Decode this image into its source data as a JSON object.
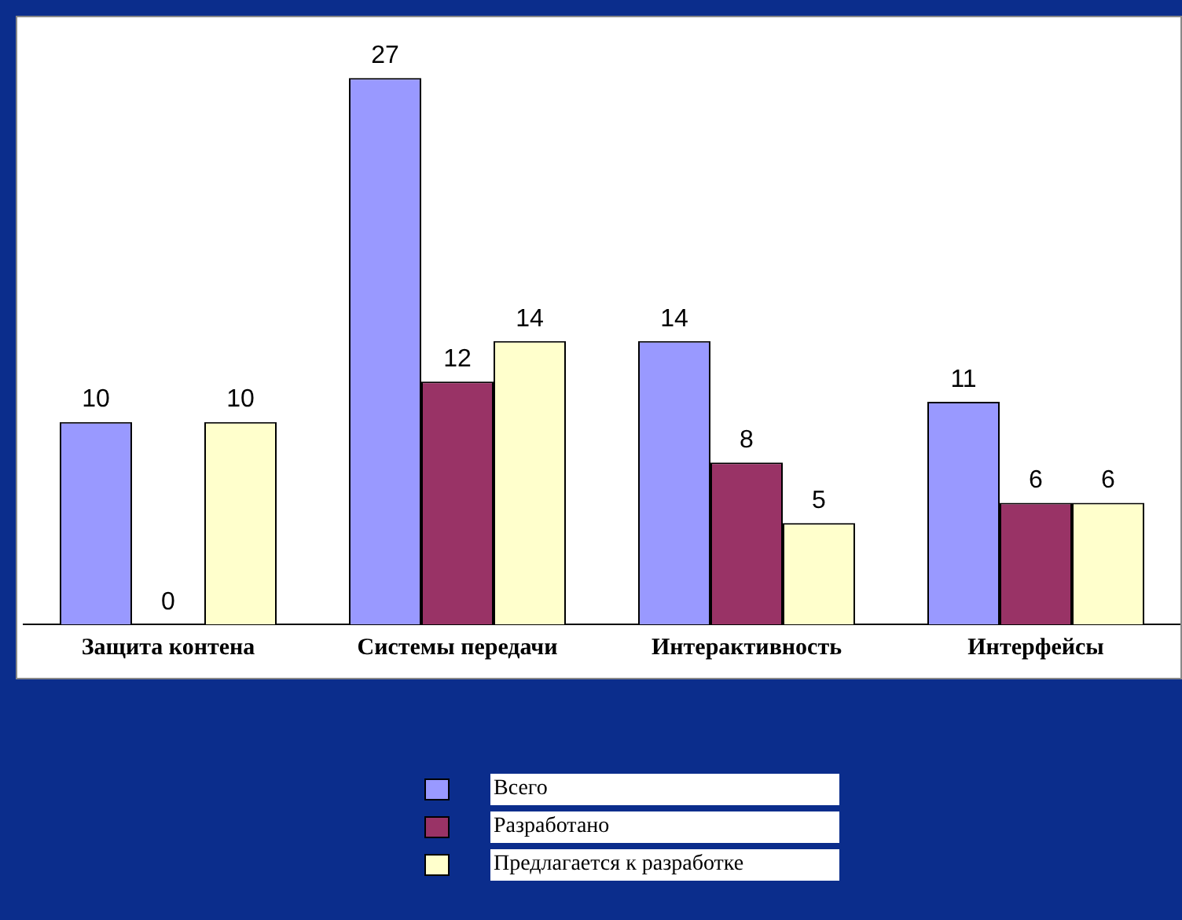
{
  "chart_data": {
    "type": "bar",
    "categories": [
      "Защита контена",
      "Системы передачи",
      "Интерактивность",
      "Интерфейсы"
    ],
    "series": [
      {
        "name": "Всего",
        "color": "#9999ff",
        "values": [
          10,
          27,
          14,
          11
        ]
      },
      {
        "name": "Разработано",
        "color": "#993366",
        "values": [
          0,
          12,
          8,
          6
        ]
      },
      {
        "name": "Предлагается к разработке",
        "color": "#ffffcc",
        "values": [
          10,
          14,
          5,
          6
        ]
      }
    ],
    "ylim": [
      0,
      30
    ],
    "data_labels": true,
    "legend": "bottom",
    "grid": false
  }
}
